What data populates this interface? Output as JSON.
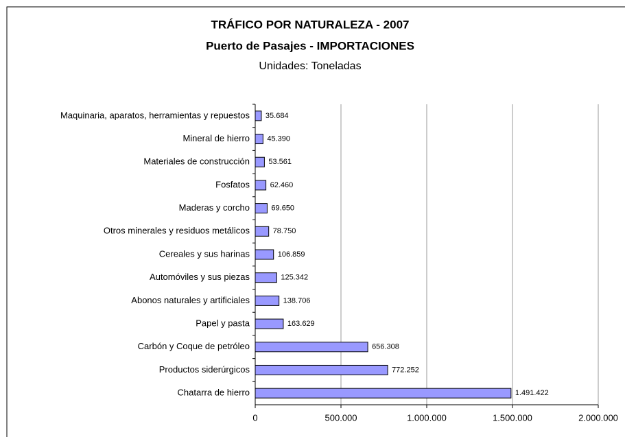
{
  "chart_data": {
    "type": "bar",
    "orientation": "horizontal",
    "title": "TRÁFICO POR NATURALEZA - 2007",
    "subtitle": "Puerto de Pasajes - IMPORTACIONES",
    "units": "Unidades: Toneladas",
    "categories": [
      "Maquinaria, aparatos, herramientas y repuestos",
      "Mineral de hierro",
      "Materiales de construcción",
      "Fosfatos",
      "Maderas y corcho",
      "Otros minerales y residuos metálicos",
      "Cereales y sus harinas",
      "Automóviles y sus piezas",
      "Abonos naturales y artificiales",
      "Papel y pasta",
      "Carbón y Coque de petróleo",
      "Productos siderúrgicos",
      "Chatarra de hierro"
    ],
    "values": [
      35684,
      45390,
      53561,
      62460,
      69650,
      78750,
      106859,
      125342,
      138706,
      163629,
      656308,
      772252,
      1491422
    ],
    "value_labels": [
      "35.684",
      "45.390",
      "53.561",
      "62.460",
      "69.650",
      "78.750",
      "106.859",
      "125.342",
      "138.706",
      "163.629",
      "656.308",
      "772.252",
      "1.491.422"
    ],
    "color": "#9999ff",
    "xlim": [
      0,
      2000000
    ],
    "xticks": [
      0,
      {
        "value": 500000,
        "label": "500.000"
      },
      {
        "value": 1000000,
        "label": "1.000.000"
      },
      {
        "value": 1500000,
        "label": "1.500.000"
      },
      {
        "value": 2000000,
        "label": "2.000.000"
      }
    ],
    "grid": true
  }
}
